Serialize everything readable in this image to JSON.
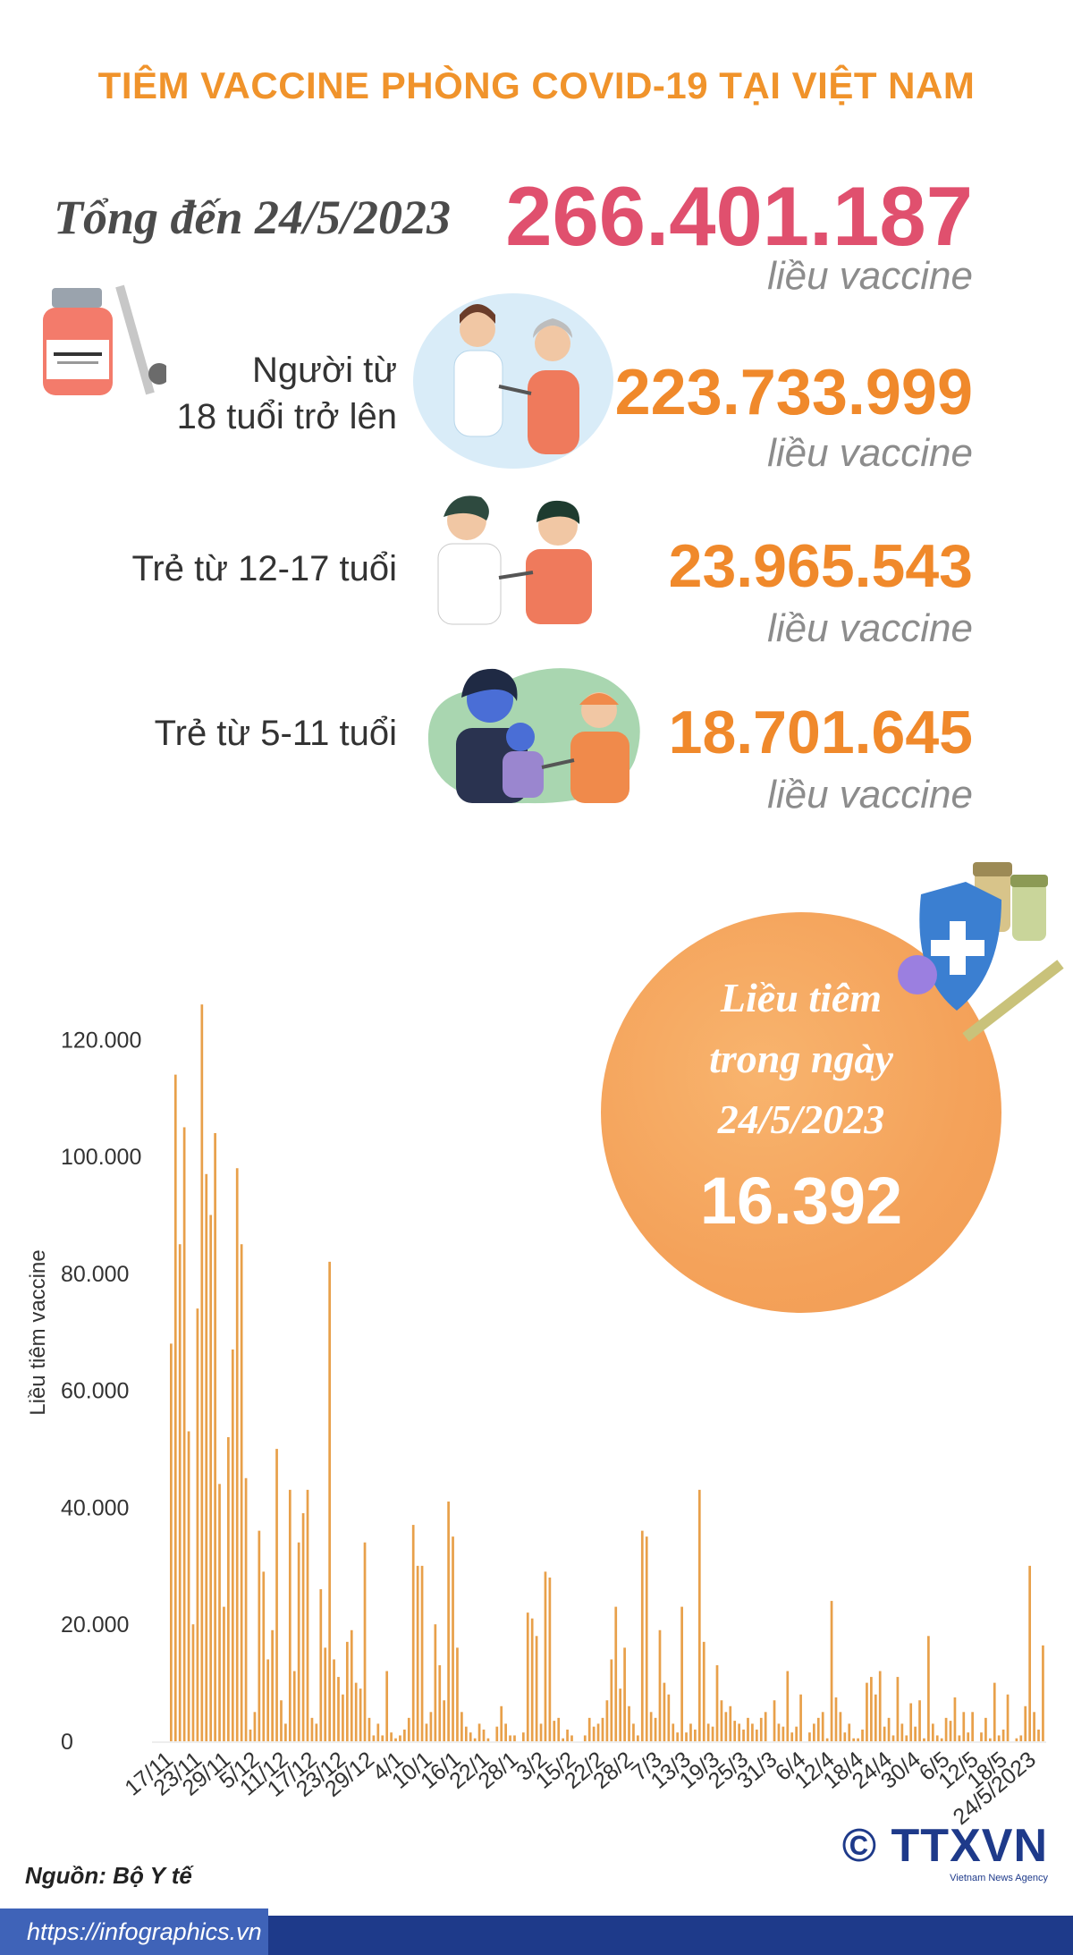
{
  "title": "TIÊM VACCINE PHÒNG COVID-19 TẠI VIỆT NAM",
  "total": {
    "label": "Tổng đến 24/5/2023",
    "value": "266.401.187",
    "unit": "liều vaccine"
  },
  "groups": [
    {
      "label_line1": "Người từ",
      "label_line2": "18 tuổi trở lên",
      "value": "223.733.999",
      "unit": "liều vaccine"
    },
    {
      "label_line1": "Trẻ từ 12-17 tuổi",
      "label_line2": "",
      "value": "23.965.543",
      "unit": "liều vaccine"
    },
    {
      "label_line1": "Trẻ từ 5-11 tuổi",
      "label_line2": "",
      "value": "18.701.645",
      "unit": "liều vaccine"
    }
  ],
  "daily": {
    "label_line1": "Liều tiêm",
    "label_line2": "trong ngày",
    "label_line3": "24/5/2023",
    "value": "16.392"
  },
  "colors": {
    "bar": "#e8a04a",
    "accent": "#f0932b",
    "total": "#e0506e",
    "footer": "#1e3a8a"
  },
  "icons": [
    "vaccine-vial-icon",
    "adult-vaccination-icon",
    "teen-vaccination-icon",
    "child-vaccination-icon",
    "shield-virus-icon"
  ],
  "chart_data": {
    "type": "bar",
    "title": "",
    "xlabel": "",
    "ylabel": "Liều tiêm vaccine",
    "ylim": [
      0,
      130000
    ],
    "yticks": [
      0,
      20000,
      40000,
      60000,
      80000,
      100000,
      120000
    ],
    "ytick_labels": [
      "0",
      "20.000",
      "40.000",
      "60.000",
      "80.000",
      "100.000",
      "120.000"
    ],
    "xtick_labels": [
      "17/11",
      "23/11",
      "29/11",
      "5/12",
      "11/12",
      "17/12",
      "23/12",
      "29/12",
      "4/1",
      "10/1",
      "16/1",
      "22/1",
      "28/1",
      "3/2",
      "15/2",
      "22/2",
      "28/2",
      "7/3",
      "13/3",
      "19/3",
      "25/3",
      "31/3",
      "6/4",
      "12/4",
      "18/4",
      "24/4",
      "30/4",
      "6/5",
      "12/5",
      "18/5",
      "24/5/2023"
    ],
    "grid": false,
    "values": [
      68000,
      114000,
      85000,
      105000,
      53000,
      20000,
      74000,
      126000,
      97000,
      90000,
      104000,
      44000,
      23000,
      52000,
      67000,
      98000,
      85000,
      45000,
      2000,
      5000,
      36000,
      29000,
      14000,
      19000,
      50000,
      7000,
      3000,
      43000,
      12000,
      34000,
      39000,
      43000,
      4000,
      3000,
      26000,
      16000,
      82000,
      14000,
      11000,
      8000,
      17000,
      19000,
      10000,
      9000,
      34000,
      4000,
      1000,
      3000,
      1000,
      12000,
      1500,
      500,
      1000,
      2000,
      4000,
      37000,
      30000,
      30000,
      3000,
      5000,
      20000,
      13000,
      7000,
      41000,
      35000,
      16000,
      5000,
      2500,
      1500,
      500,
      3000,
      2000,
      500,
      0,
      2500,
      6000,
      3000,
      1000,
      1000,
      0,
      1500,
      22000,
      21000,
      18000,
      3000,
      29000,
      28000,
      3500,
      4000,
      500,
      2000,
      1000,
      0,
      0,
      1000,
      4000,
      2500,
      3000,
      4000,
      7000,
      14000,
      23000,
      9000,
      16000,
      6000,
      3000,
      1000,
      36000,
      35000,
      5000,
      4000,
      19000,
      10000,
      8000,
      3000,
      1500,
      23000,
      1500,
      3000,
      2000,
      43000,
      17000,
      3000,
      2500,
      13000,
      7000,
      5000,
      6000,
      3500,
      3000,
      2000,
      4000,
      3000,
      2000,
      4000,
      5000,
      0,
      7000,
      3000,
      2500,
      12000,
      1500,
      2500,
      8000,
      0,
      1500,
      3000,
      4000,
      5000,
      500,
      24000,
      7500,
      5000,
      1500,
      3000,
      500,
      500,
      2000,
      10000,
      11000,
      8000,
      12000,
      2500,
      4000,
      1000,
      11000,
      3000,
      1000,
      6500,
      2500,
      7000,
      500,
      18000,
      3000,
      1000,
      500,
      4000,
      3500,
      7500,
      1000,
      5000,
      1500,
      5000,
      0,
      1500,
      4000,
      500,
      10000,
      1000,
      2000,
      8000,
      0,
      500,
      1000,
      6000,
      30000,
      5000,
      2000,
      16392
    ]
  },
  "source": "Nguồn: Bộ Y tế",
  "footer": {
    "url": "https://infographics.vn",
    "logo": "© TTXVN",
    "logo_sub": "Vietnam News Agency"
  }
}
